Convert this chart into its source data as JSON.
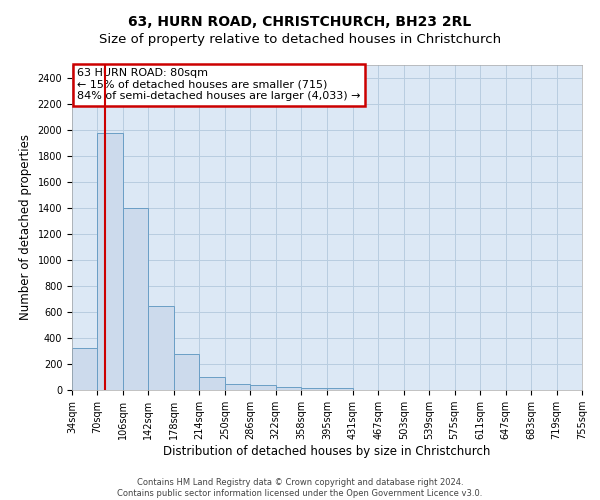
{
  "title": "63, HURN ROAD, CHRISTCHURCH, BH23 2RL",
  "subtitle": "Size of property relative to detached houses in Christchurch",
  "xlabel": "Distribution of detached houses by size in Christchurch",
  "ylabel": "Number of detached properties",
  "footer1": "Contains HM Land Registry data © Crown copyright and database right 2024.",
  "footer2": "Contains public sector information licensed under the Open Government Licence v3.0.",
  "bins": [
    34,
    70,
    106,
    142,
    178,
    214,
    250,
    286,
    322,
    358,
    395,
    431,
    467,
    503,
    539,
    575,
    611,
    647,
    683,
    719,
    755
  ],
  "counts": [
    320,
    1980,
    1400,
    645,
    275,
    100,
    48,
    35,
    25,
    15,
    15,
    0,
    0,
    0,
    0,
    0,
    0,
    0,
    0,
    0
  ],
  "bar_facecolor": "#ccdaec",
  "bar_edgecolor": "#6a9ec5",
  "property_line_x": 80,
  "property_line_color": "#cc0000",
  "ylim": [
    0,
    2500
  ],
  "yticks": [
    0,
    200,
    400,
    600,
    800,
    1000,
    1200,
    1400,
    1600,
    1800,
    2000,
    2200,
    2400
  ],
  "annotation_text": "63 HURN ROAD: 80sqm\n← 15% of detached houses are smaller (715)\n84% of semi-detached houses are larger (4,033) →",
  "annotation_box_facecolor": "#ffffff",
  "annotation_box_edgecolor": "#cc0000",
  "grid_color": "#b8cde0",
  "background_color": "#dce8f5",
  "title_fontsize": 10,
  "axis_label_fontsize": 8.5,
  "tick_fontsize": 7,
  "annotation_fontsize": 8
}
